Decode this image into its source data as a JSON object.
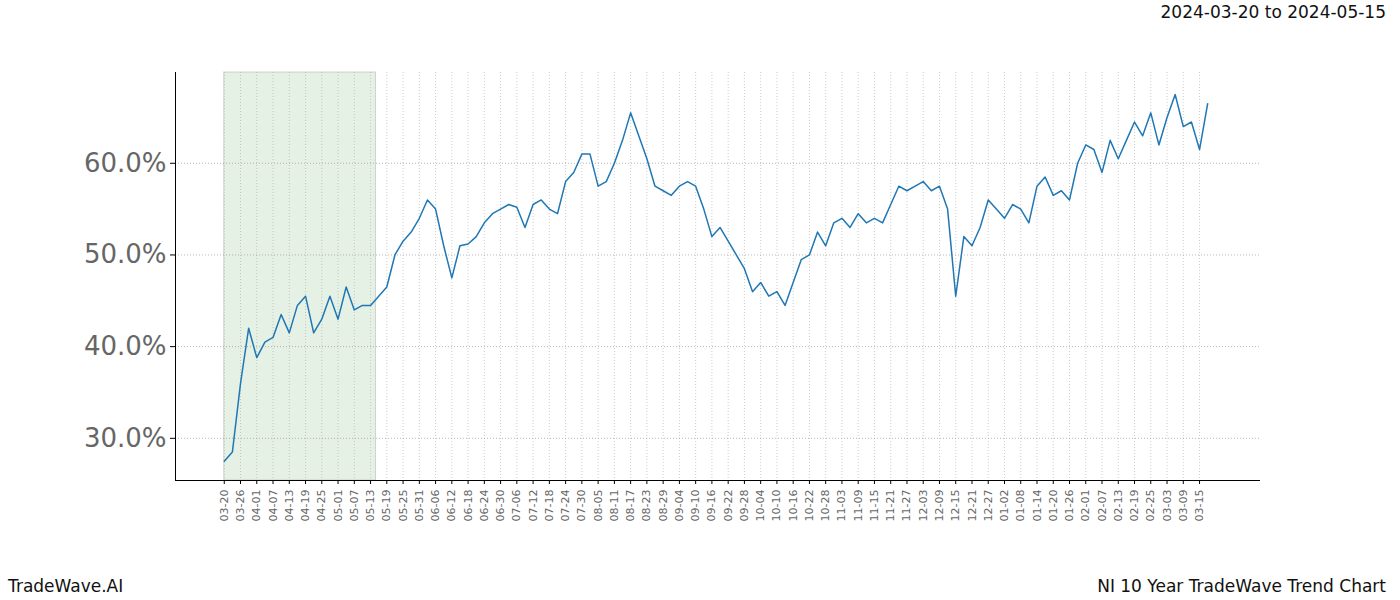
{
  "chart_data": {
    "type": "line",
    "title": "2024-03-20 to 2024-05-15",
    "source": "TradeWave.AI",
    "caption": "NI 10 Year TradeWave Trend Chart",
    "shaded_range": [
      "2024-03-20",
      "2024-05-15"
    ],
    "x": [
      "03-20",
      null,
      "03-26",
      null,
      "04-01",
      null,
      "04-07",
      null,
      "04-13",
      null,
      "04-19",
      null,
      "04-25",
      null,
      "05-01",
      null,
      "05-07",
      null,
      "05-13",
      null,
      "05-19",
      null,
      "05-25",
      null,
      "05-31",
      null,
      "06-06",
      null,
      "06-12",
      null,
      "06-18",
      null,
      "06-24",
      null,
      "06-30",
      null,
      "07-06",
      null,
      "07-12",
      null,
      "07-18",
      null,
      "07-24",
      null,
      "07-30",
      null,
      "08-05",
      null,
      "08-11",
      null,
      "08-17",
      null,
      "08-23",
      null,
      "08-29",
      null,
      "09-04",
      null,
      "09-10",
      null,
      "09-16",
      null,
      "09-22",
      null,
      "09-28",
      null,
      "10-04",
      null,
      "10-10",
      null,
      "10-16",
      null,
      "10-22",
      null,
      "10-28",
      null,
      "11-03",
      null,
      "11-09",
      null,
      "11-15",
      null,
      "11-21",
      null,
      "11-27",
      null,
      "12-03",
      null,
      "12-09",
      null,
      "12-15",
      null,
      "12-21",
      null,
      "12-27",
      null,
      "01-02",
      null,
      "01-08",
      null,
      "01-14",
      null,
      "01-20",
      null,
      "01-26",
      null,
      "02-01",
      null,
      "02-07",
      null,
      "02-13",
      null,
      "02-19",
      null,
      "02-25",
      null,
      "03-03",
      null,
      "03-09",
      null,
      "03-15",
      null
    ],
    "values": [
      27.5,
      28.5,
      36,
      42,
      38.8,
      40.5,
      41,
      43.5,
      41.5,
      44.5,
      45.5,
      41.5,
      43,
      45.5,
      43,
      46.5,
      44,
      44.5,
      44.5,
      45.5,
      46.5,
      50,
      51.5,
      52.5,
      54,
      56,
      55,
      51,
      47.5,
      51,
      51.2,
      52,
      53.5,
      54.5,
      55,
      55.5,
      55.2,
      53,
      55.5,
      56,
      55,
      54.5,
      58,
      59,
      61,
      61,
      57.5,
      58,
      60,
      62.5,
      65.5,
      63,
      60.5,
      57.5,
      57,
      56.5,
      57.5,
      58,
      57.5,
      55,
      52,
      53,
      51.5,
      50,
      48.5,
      46,
      47,
      45.5,
      46,
      44.5,
      47,
      49.5,
      50,
      52.5,
      51,
      53.5,
      54,
      53,
      54.5,
      53.5,
      54,
      53.5,
      55.5,
      57.5,
      57,
      57.5,
      58,
      57,
      57.5,
      55,
      45.5,
      52,
      51,
      53,
      56,
      55,
      54,
      55.5,
      55,
      53.5,
      57.5,
      58.5,
      56.5,
      57,
      56,
      60,
      62,
      61.5,
      59,
      62.5,
      60.5,
      62.5,
      64.5,
      63,
      65.5,
      62,
      65,
      67.5,
      64,
      64.5,
      61.5,
      66.5
    ],
    "color": "#1f77b4",
    "line_style": "solid",
    "ylim": [
      25.4,
      69.9
    ],
    "yticks": [
      {
        "value": 30,
        "label": "30.0%"
      },
      {
        "value": 40,
        "label": "40.0%"
      },
      {
        "value": 50,
        "label": "50.0%"
      },
      {
        "value": 60,
        "label": "60.0%"
      }
    ],
    "grid": true
  }
}
